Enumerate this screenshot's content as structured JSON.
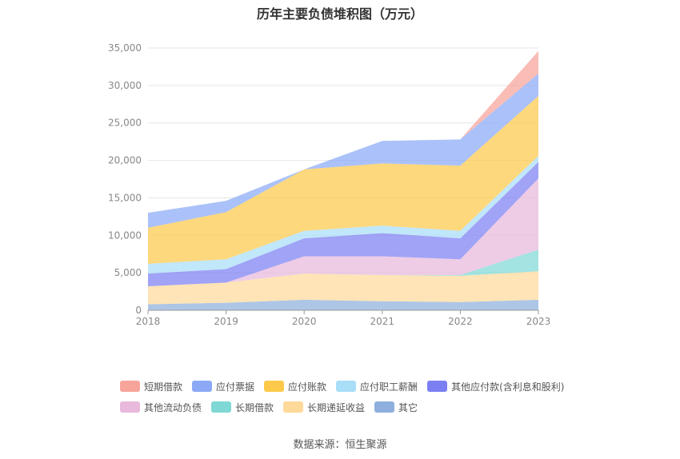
{
  "chart_data": {
    "type": "area",
    "stacked": true,
    "title": "历年主要负债堆积图（万元）",
    "x": [
      "2018",
      "2019",
      "2020",
      "2021",
      "2022",
      "2023"
    ],
    "ylim": [
      0,
      35000
    ],
    "yticks": [
      0,
      5000,
      10000,
      15000,
      20000,
      25000,
      30000,
      35000
    ],
    "ytick_labels": [
      "0",
      "5,000",
      "10,000",
      "15,000",
      "20,000",
      "25,000",
      "30,000",
      "35,000"
    ],
    "grid": true,
    "legend_position": "bottom",
    "series": [
      {
        "name": "短期借款",
        "color": "#f7a49a",
        "values": [
          0,
          0,
          0,
          0,
          0,
          3000
        ]
      },
      {
        "name": "应付票据",
        "color": "#8ba9f6",
        "values": [
          2000,
          1500,
          0,
          3000,
          3500,
          3000
        ]
      },
      {
        "name": "应付账款",
        "color": "#fcc94a",
        "values": [
          4800,
          6300,
          8200,
          8300,
          8700,
          8000
        ]
      },
      {
        "name": "应付职工薪酬",
        "color": "#a9def8",
        "values": [
          1300,
          1300,
          1000,
          1000,
          1000,
          800
        ]
      },
      {
        "name": "其他应付款(含利息和股利)",
        "color": "#7b7ff2",
        "values": [
          1700,
          1800,
          2400,
          3100,
          2800,
          2200
        ]
      },
      {
        "name": "其他流动负债",
        "color": "#e8b9dc",
        "values": [
          0,
          0,
          2300,
          2500,
          2100,
          9500
        ]
      },
      {
        "name": "长期借款",
        "color": "#7fd8d5",
        "values": [
          0,
          0,
          0,
          0,
          100,
          2900
        ]
      },
      {
        "name": "长期递延收益",
        "color": "#fed99a",
        "values": [
          2400,
          2700,
          3500,
          3500,
          3500,
          3800
        ]
      },
      {
        "name": "其它",
        "color": "#8fb0dc",
        "values": [
          800,
          1000,
          1400,
          1200,
          1100,
          1400
        ]
      }
    ],
    "source": "数据来源：恒生聚源"
  }
}
